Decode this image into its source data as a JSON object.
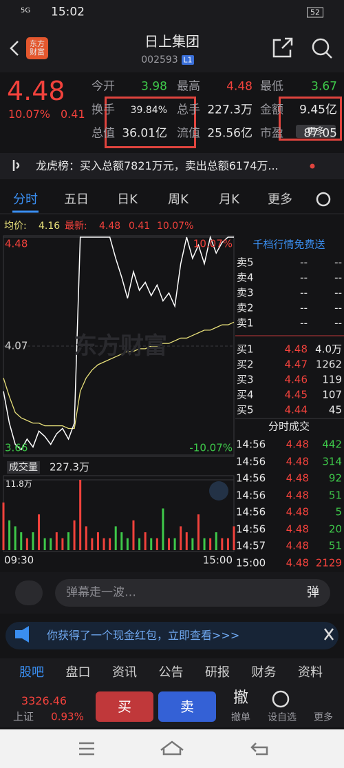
{
  "status_bar": {
    "network": "5G",
    "time": "15:02",
    "battery": "52"
  },
  "header": {
    "logo": "东方财富",
    "title": "日上集团",
    "code": "002593",
    "level": "L1"
  },
  "quote": {
    "price": "4.48",
    "change_pct": "10.07%",
    "change": "0.41",
    "stats": [
      [
        "今开",
        "3.98"
      ],
      [
        "最高",
        "4.48"
      ],
      [
        "最低",
        "3.67"
      ],
      [
        "换手",
        "39.84%"
      ],
      [
        "总手",
        "227.3万"
      ],
      [
        "金额",
        "9.45亿"
      ],
      [
        "总值",
        "36.01亿"
      ],
      [
        "流值",
        "25.56亿"
      ],
      [
        "市盈",
        "87.05"
      ]
    ],
    "more": "更多"
  },
  "banner": "龙虎榜：买入总额7821万元，卖出总额6174万...",
  "tabs": [
    "分时",
    "五日",
    "日K",
    "周K",
    "月K",
    "更多"
  ],
  "info": {
    "avg_label": "均价:",
    "avg": "4.16",
    "last_label": "最新:",
    "last": "4.48",
    "change": "0.41",
    "pct": "10.07%"
  },
  "chart": {
    "watermark": "东方财富",
    "price": [
      3.9,
      3.78,
      3.7,
      3.68,
      3.72,
      3.69,
      3.75,
      3.73,
      3.7,
      3.74,
      3.76,
      3.72,
      3.78,
      4.48,
      4.48,
      4.48,
      4.48,
      4.48,
      4.48,
      4.4,
      4.33,
      4.25,
      4.35,
      4.28,
      4.31,
      4.26,
      4.3,
      4.24,
      4.27,
      4.22,
      4.38,
      4.48,
      4.4,
      4.45,
      4.38,
      4.48,
      4.42,
      4.46,
      4.48,
      4.48
    ],
    "avg": [
      3.95,
      3.88,
      3.82,
      3.8,
      3.79,
      3.78,
      3.78,
      3.77,
      3.77,
      3.77,
      3.77,
      3.76,
      3.76,
      3.9,
      3.95,
      3.98,
      4.0,
      4.01,
      4.02,
      4.03,
      4.04,
      4.05,
      4.05,
      4.06,
      4.06,
      4.07,
      4.07,
      4.08,
      4.08,
      4.09,
      4.1,
      4.1,
      4.11,
      4.12,
      4.13,
      4.13,
      4.14,
      4.15,
      4.15,
      4.16
    ],
    "price_color": "#ffffff",
    "avg_color": "#e8e07a",
    "ylim": [
      3.66,
      4.48
    ],
    "yticks": [
      4.48,
      4.07,
      3.66
    ],
    "pct_top": "10.07%",
    "pct_bottom": "-10.07%"
  },
  "volume": {
    "label": "成交量",
    "total": "227.3万",
    "values": [
      8,
      5,
      4,
      3,
      2,
      3,
      6,
      2,
      2,
      3,
      2,
      3,
      5,
      11.8,
      4,
      2,
      3,
      2,
      2,
      4,
      3,
      2,
      5,
      2,
      3,
      2,
      2,
      7,
      2,
      2,
      4,
      3,
      2,
      6,
      2,
      2,
      3,
      2,
      2,
      4
    ],
    "ylim": [
      0,
      11.8
    ],
    "yticks": [
      {
        "value": 11.8,
        "label": "11.8万"
      }
    ]
  },
  "x_labels": [
    "09:30",
    "15:00"
  ],
  "order_book": {
    "title": "千档行情免费送",
    "asks": [
      [
        "卖5",
        "--",
        "--"
      ],
      [
        "卖4",
        "--",
        "--"
      ],
      [
        "卖3",
        "--",
        "--"
      ],
      [
        "卖2",
        "--",
        "--"
      ],
      [
        "卖1",
        "--",
        "--"
      ]
    ],
    "bids": [
      [
        "买1",
        4.48,
        "4.0万"
      ],
      [
        "买2",
        4.47,
        1262
      ],
      [
        "买3",
        4.46,
        119
      ],
      [
        "买4",
        4.45,
        107
      ],
      [
        "买5",
        4.44,
        45
      ]
    ]
  },
  "trades": {
    "title": "分时成交",
    "rows": [
      [
        "14:56",
        4.48,
        442
      ],
      [
        "14:56",
        4.48,
        314
      ],
      [
        "14:56",
        4.48,
        92
      ],
      [
        "14:56",
        4.48,
        51
      ],
      [
        "14:56",
        4.48,
        5
      ],
      [
        "14:56",
        4.48,
        20
      ],
      [
        "14:57",
        4.48,
        51
      ],
      [
        "15:00",
        4.48,
        2129
      ]
    ]
  },
  "comment_placeholder": "弹幕走一波…",
  "comment_button": "弹",
  "promo": "你获得了一个现金红包，立即查看>>>",
  "bottom_tabs": [
    "股吧",
    "盘口",
    "资讯",
    "公告",
    "研报",
    "财务",
    "资料"
  ],
  "index": {
    "value": "3326.46",
    "name": "上证",
    "pct": "0.93%"
  },
  "actions": {
    "buy": "买",
    "sell": "卖",
    "cancel_icon": "撤",
    "cancel": "撤单",
    "watch": "设自选",
    "more": "更多"
  }
}
